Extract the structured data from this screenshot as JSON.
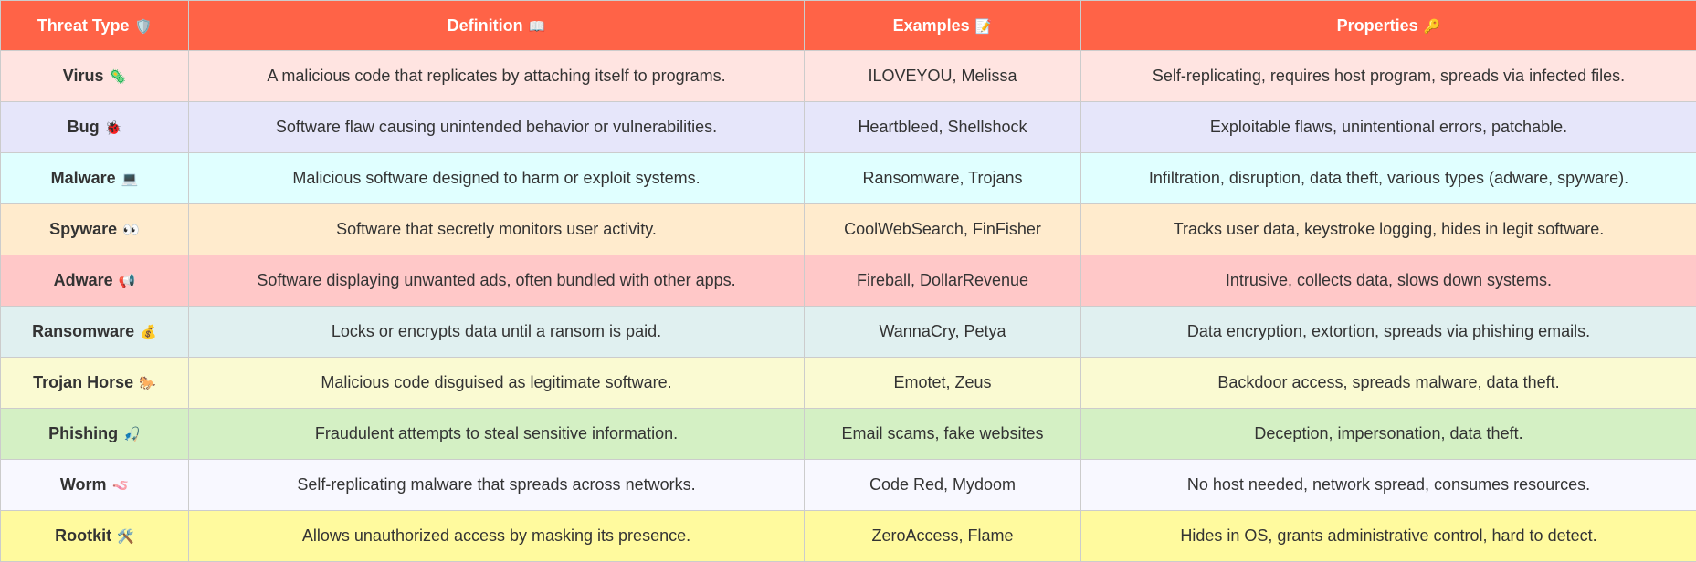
{
  "table": {
    "headers": [
      {
        "label": "Threat Type",
        "icon": "🛡️",
        "icon_name": "shield-icon"
      },
      {
        "label": "Definition",
        "icon": "📖",
        "icon_name": "book-icon"
      },
      {
        "label": "Examples",
        "icon": "📝",
        "icon_name": "memo-icon"
      },
      {
        "label": "Properties",
        "icon": "🔑",
        "icon_name": "key-icon"
      }
    ],
    "header_bg": "#ff6347",
    "rows": [
      {
        "type": "Virus",
        "icon": "🦠",
        "icon_name": "microbe-icon",
        "definition": "A malicious code that replicates by attaching itself to programs.",
        "examples": "ILOVEYOU, Melissa",
        "properties": "Self-replicating, requires host program, spreads via infected files.",
        "bg": "#ffe4e1"
      },
      {
        "type": "Bug",
        "icon": "🐞",
        "icon_name": "ladybug-icon",
        "definition": "Software flaw causing unintended behavior or vulnerabilities.",
        "examples": "Heartbleed, Shellshock",
        "properties": "Exploitable flaws, unintentional errors, patchable.",
        "bg": "#e6e6fa"
      },
      {
        "type": "Malware",
        "icon": "💻",
        "icon_name": "laptop-icon",
        "definition": "Malicious software designed to harm or exploit systems.",
        "examples": "Ransomware, Trojans",
        "properties": "Infiltration, disruption, data theft, various types (adware, spyware).",
        "bg": "#e0ffff"
      },
      {
        "type": "Spyware",
        "icon": "👀",
        "icon_name": "eyes-icon",
        "definition": "Software that secretly monitors user activity.",
        "examples": "CoolWebSearch, FinFisher",
        "properties": "Tracks user data, keystroke logging, hides in legit software.",
        "bg": "#ffebcd"
      },
      {
        "type": "Adware",
        "icon": "📢",
        "icon_name": "megaphone-icon",
        "definition": "Software displaying unwanted ads, often bundled with other apps.",
        "examples": "Fireball, DollarRevenue",
        "properties": "Intrusive, collects data, slows down systems.",
        "bg": "#ffc8c8"
      },
      {
        "type": "Ransomware",
        "icon": "💰",
        "icon_name": "money-bag-icon",
        "definition": "Locks or encrypts data until a ransom is paid.",
        "examples": "WannaCry, Petya",
        "properties": "Data encryption, extortion, spreads via phishing emails.",
        "bg": "#e0f0f0"
      },
      {
        "type": "Trojan Horse",
        "icon": "🐎",
        "icon_name": "horse-icon",
        "definition": "Malicious code disguised as legitimate software.",
        "examples": "Emotet, Zeus",
        "properties": "Backdoor access, spreads malware, data theft.",
        "bg": "#fafad2"
      },
      {
        "type": "Phishing",
        "icon": "🎣",
        "icon_name": "fishing-pole-icon",
        "definition": "Fraudulent attempts to steal sensitive information.",
        "examples": "Email scams, fake websites",
        "properties": "Deception, impersonation, data theft.",
        "bg": "#d4f0c4"
      },
      {
        "type": "Worm",
        "icon": "🪱",
        "icon_name": "worm-icon",
        "definition": "Self-replicating malware that spreads across networks.",
        "examples": "Code Red, Mydoom",
        "properties": "No host needed, network spread, consumes resources.",
        "bg": "#f8f8ff"
      },
      {
        "type": "Rootkit",
        "icon": "🛠️",
        "icon_name": "tools-icon",
        "definition": "Allows unauthorized access by masking its presence.",
        "examples": "ZeroAccess, Flame",
        "properties": "Hides in OS, grants administrative control, hard to detect.",
        "bg": "#fffa9e"
      }
    ]
  }
}
